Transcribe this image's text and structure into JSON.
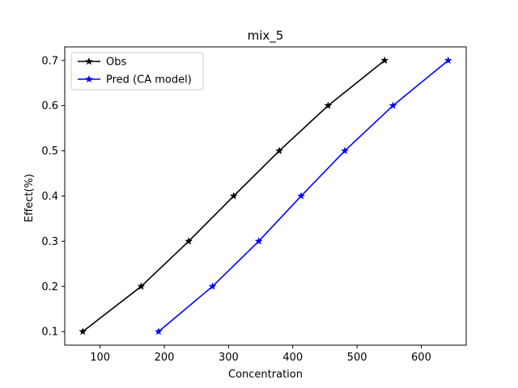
{
  "chart_data": {
    "type": "line",
    "title": "mix_5",
    "xlabel": "Concentration",
    "ylabel": "Effect(%)",
    "xlim": [
      45,
      670
    ],
    "ylim": [
      0.07,
      0.73
    ],
    "xticks": [
      100,
      200,
      300,
      400,
      500,
      600
    ],
    "yticks": [
      0.1,
      0.2,
      0.3,
      0.4,
      0.5,
      0.6,
      0.7
    ],
    "xtick_labels": [
      "100",
      "200",
      "300",
      "400",
      "500",
      "600"
    ],
    "ytick_labels": [
      "0.1",
      "0.2",
      "0.3",
      "0.4",
      "0.5",
      "0.6",
      "0.7"
    ],
    "grid": false,
    "legend_position": "upper-left",
    "series": [
      {
        "name": "Obs",
        "color": "#000000",
        "marker": "star",
        "x": [
          73,
          164,
          238,
          308,
          379,
          455,
          543
        ],
        "y": [
          0.1,
          0.2,
          0.3,
          0.4,
          0.5,
          0.6,
          0.7
        ]
      },
      {
        "name": "Pred (CA model)",
        "color": "#0000ff",
        "marker": "star",
        "x": [
          191,
          275,
          347,
          413,
          481,
          556,
          642
        ],
        "y": [
          0.1,
          0.2,
          0.3,
          0.4,
          0.5,
          0.6,
          0.7
        ]
      }
    ]
  }
}
